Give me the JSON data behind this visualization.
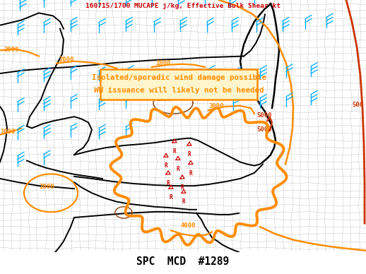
{
  "title": "SPC  MCD  #1289",
  "header": "160715/1700 MUCAPE j/kg, Effective Bulk Shear kt",
  "bg_color": "#ffffff",
  "map_bg": "#dcdcdc",
  "title_color": "#000000",
  "header_color": "#cc0000",
  "annotation_text_line1": "Isolated/sporadic wind damage possible",
  "annotation_text_line2": "WW issuance will likely not be heeded",
  "annotation_color": "#ff8c00",
  "annotation_box_color": "#ff8c00",
  "annotation_box_fill": "#fff5cc",
  "contour_orange_color": "#ff8c00",
  "contour_dark_orange": "#cc3300",
  "contour_brown_color": "#8B4513",
  "highlight_outline_color": "#ff8c00",
  "state_line_color": "#000000",
  "county_line_color": "#b0b0b0",
  "wind_barb_color": "#00aaff",
  "red_marker_color": "#cc0000",
  "fig_width": 5.18,
  "fig_height": 3.88,
  "dpi": 100
}
